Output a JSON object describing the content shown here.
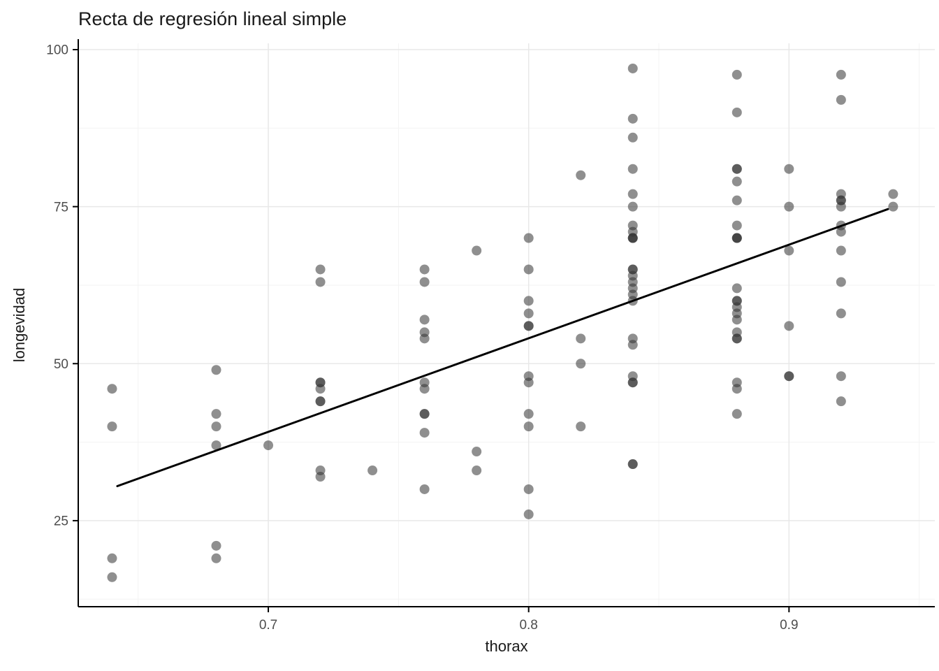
{
  "chart_data": {
    "type": "scatter",
    "title": "Recta de regresión lineal simple",
    "xlabel": "thorax",
    "ylabel": "longevidad",
    "xlim": [
      0.627,
      0.956
    ],
    "ylim": [
      11.3,
      101
    ],
    "x_ticks": [
      0.7,
      0.8,
      0.9
    ],
    "x_tick_labels": [
      "0.7",
      "0.8",
      "0.9"
    ],
    "x_minor_ticks": [
      0.65,
      0.75,
      0.85,
      0.95
    ],
    "y_ticks": [
      25,
      50,
      75,
      100
    ],
    "y_tick_labels": [
      "25",
      "50",
      "75",
      "100"
    ],
    "y_minor_ticks": [
      12.5,
      37.5,
      62.5,
      87.5
    ],
    "grid": "on",
    "grid_major_color": "#e8e8e8",
    "grid_minor_color": "#f3f3f3",
    "axis_line_color": "#000000",
    "point_color": "#333333",
    "point_opacity": 0.55,
    "point_radius": 7,
    "regression_line": {
      "x1": 0.642,
      "y1": 30.5,
      "x2": 0.938,
      "y2": 74.6,
      "color": "#000000",
      "width": 3
    },
    "legend": "none",
    "points": [
      [
        0.64,
        16
      ],
      [
        0.64,
        19
      ],
      [
        0.64,
        40
      ],
      [
        0.64,
        46
      ],
      [
        0.68,
        19
      ],
      [
        0.68,
        21
      ],
      [
        0.68,
        37
      ],
      [
        0.68,
        40
      ],
      [
        0.68,
        42
      ],
      [
        0.68,
        49
      ],
      [
        0.7,
        37
      ],
      [
        0.72,
        32
      ],
      [
        0.72,
        33
      ],
      [
        0.72,
        44
      ],
      [
        0.72,
        44
      ],
      [
        0.72,
        46
      ],
      [
        0.72,
        47
      ],
      [
        0.72,
        47
      ],
      [
        0.72,
        63
      ],
      [
        0.72,
        65
      ],
      [
        0.74,
        33
      ],
      [
        0.76,
        30
      ],
      [
        0.76,
        39
      ],
      [
        0.76,
        42
      ],
      [
        0.76,
        42
      ],
      [
        0.76,
        46
      ],
      [
        0.76,
        47
      ],
      [
        0.76,
        54
      ],
      [
        0.76,
        55
      ],
      [
        0.76,
        57
      ],
      [
        0.76,
        63
      ],
      [
        0.76,
        65
      ],
      [
        0.78,
        33
      ],
      [
        0.78,
        36
      ],
      [
        0.78,
        68
      ],
      [
        0.8,
        26
      ],
      [
        0.8,
        30
      ],
      [
        0.8,
        40
      ],
      [
        0.8,
        42
      ],
      [
        0.8,
        47
      ],
      [
        0.8,
        48
      ],
      [
        0.8,
        56
      ],
      [
        0.8,
        56
      ],
      [
        0.8,
        58
      ],
      [
        0.8,
        60
      ],
      [
        0.8,
        65
      ],
      [
        0.8,
        70
      ],
      [
        0.82,
        40
      ],
      [
        0.82,
        50
      ],
      [
        0.82,
        54
      ],
      [
        0.82,
        80
      ],
      [
        0.84,
        34
      ],
      [
        0.84,
        34
      ],
      [
        0.84,
        47
      ],
      [
        0.84,
        47
      ],
      [
        0.84,
        48
      ],
      [
        0.84,
        53
      ],
      [
        0.84,
        54
      ],
      [
        0.84,
        60
      ],
      [
        0.84,
        61
      ],
      [
        0.84,
        62
      ],
      [
        0.84,
        63
      ],
      [
        0.84,
        64
      ],
      [
        0.84,
        65
      ],
      [
        0.84,
        65
      ],
      [
        0.84,
        70
      ],
      [
        0.84,
        70
      ],
      [
        0.84,
        70
      ],
      [
        0.84,
        71
      ],
      [
        0.84,
        72
      ],
      [
        0.84,
        75
      ],
      [
        0.84,
        77
      ],
      [
        0.84,
        81
      ],
      [
        0.84,
        86
      ],
      [
        0.84,
        89
      ],
      [
        0.84,
        97
      ],
      [
        0.88,
        42
      ],
      [
        0.88,
        46
      ],
      [
        0.88,
        47
      ],
      [
        0.88,
        54
      ],
      [
        0.88,
        54
      ],
      [
        0.88,
        55
      ],
      [
        0.88,
        57
      ],
      [
        0.88,
        58
      ],
      [
        0.88,
        59
      ],
      [
        0.88,
        60
      ],
      [
        0.88,
        60
      ],
      [
        0.88,
        62
      ],
      [
        0.88,
        70
      ],
      [
        0.88,
        70
      ],
      [
        0.88,
        70
      ],
      [
        0.88,
        72
      ],
      [
        0.88,
        76
      ],
      [
        0.88,
        79
      ],
      [
        0.88,
        81
      ],
      [
        0.88,
        81
      ],
      [
        0.88,
        90
      ],
      [
        0.88,
        96
      ],
      [
        0.9,
        48
      ],
      [
        0.9,
        48
      ],
      [
        0.9,
        56
      ],
      [
        0.9,
        68
      ],
      [
        0.9,
        75
      ],
      [
        0.9,
        81
      ],
      [
        0.92,
        44
      ],
      [
        0.92,
        48
      ],
      [
        0.92,
        58
      ],
      [
        0.92,
        63
      ],
      [
        0.92,
        68
      ],
      [
        0.92,
        71
      ],
      [
        0.92,
        72
      ],
      [
        0.92,
        75
      ],
      [
        0.92,
        76
      ],
      [
        0.92,
        76
      ],
      [
        0.92,
        77
      ],
      [
        0.92,
        92
      ],
      [
        0.92,
        96
      ],
      [
        0.94,
        75
      ],
      [
        0.94,
        77
      ]
    ]
  }
}
